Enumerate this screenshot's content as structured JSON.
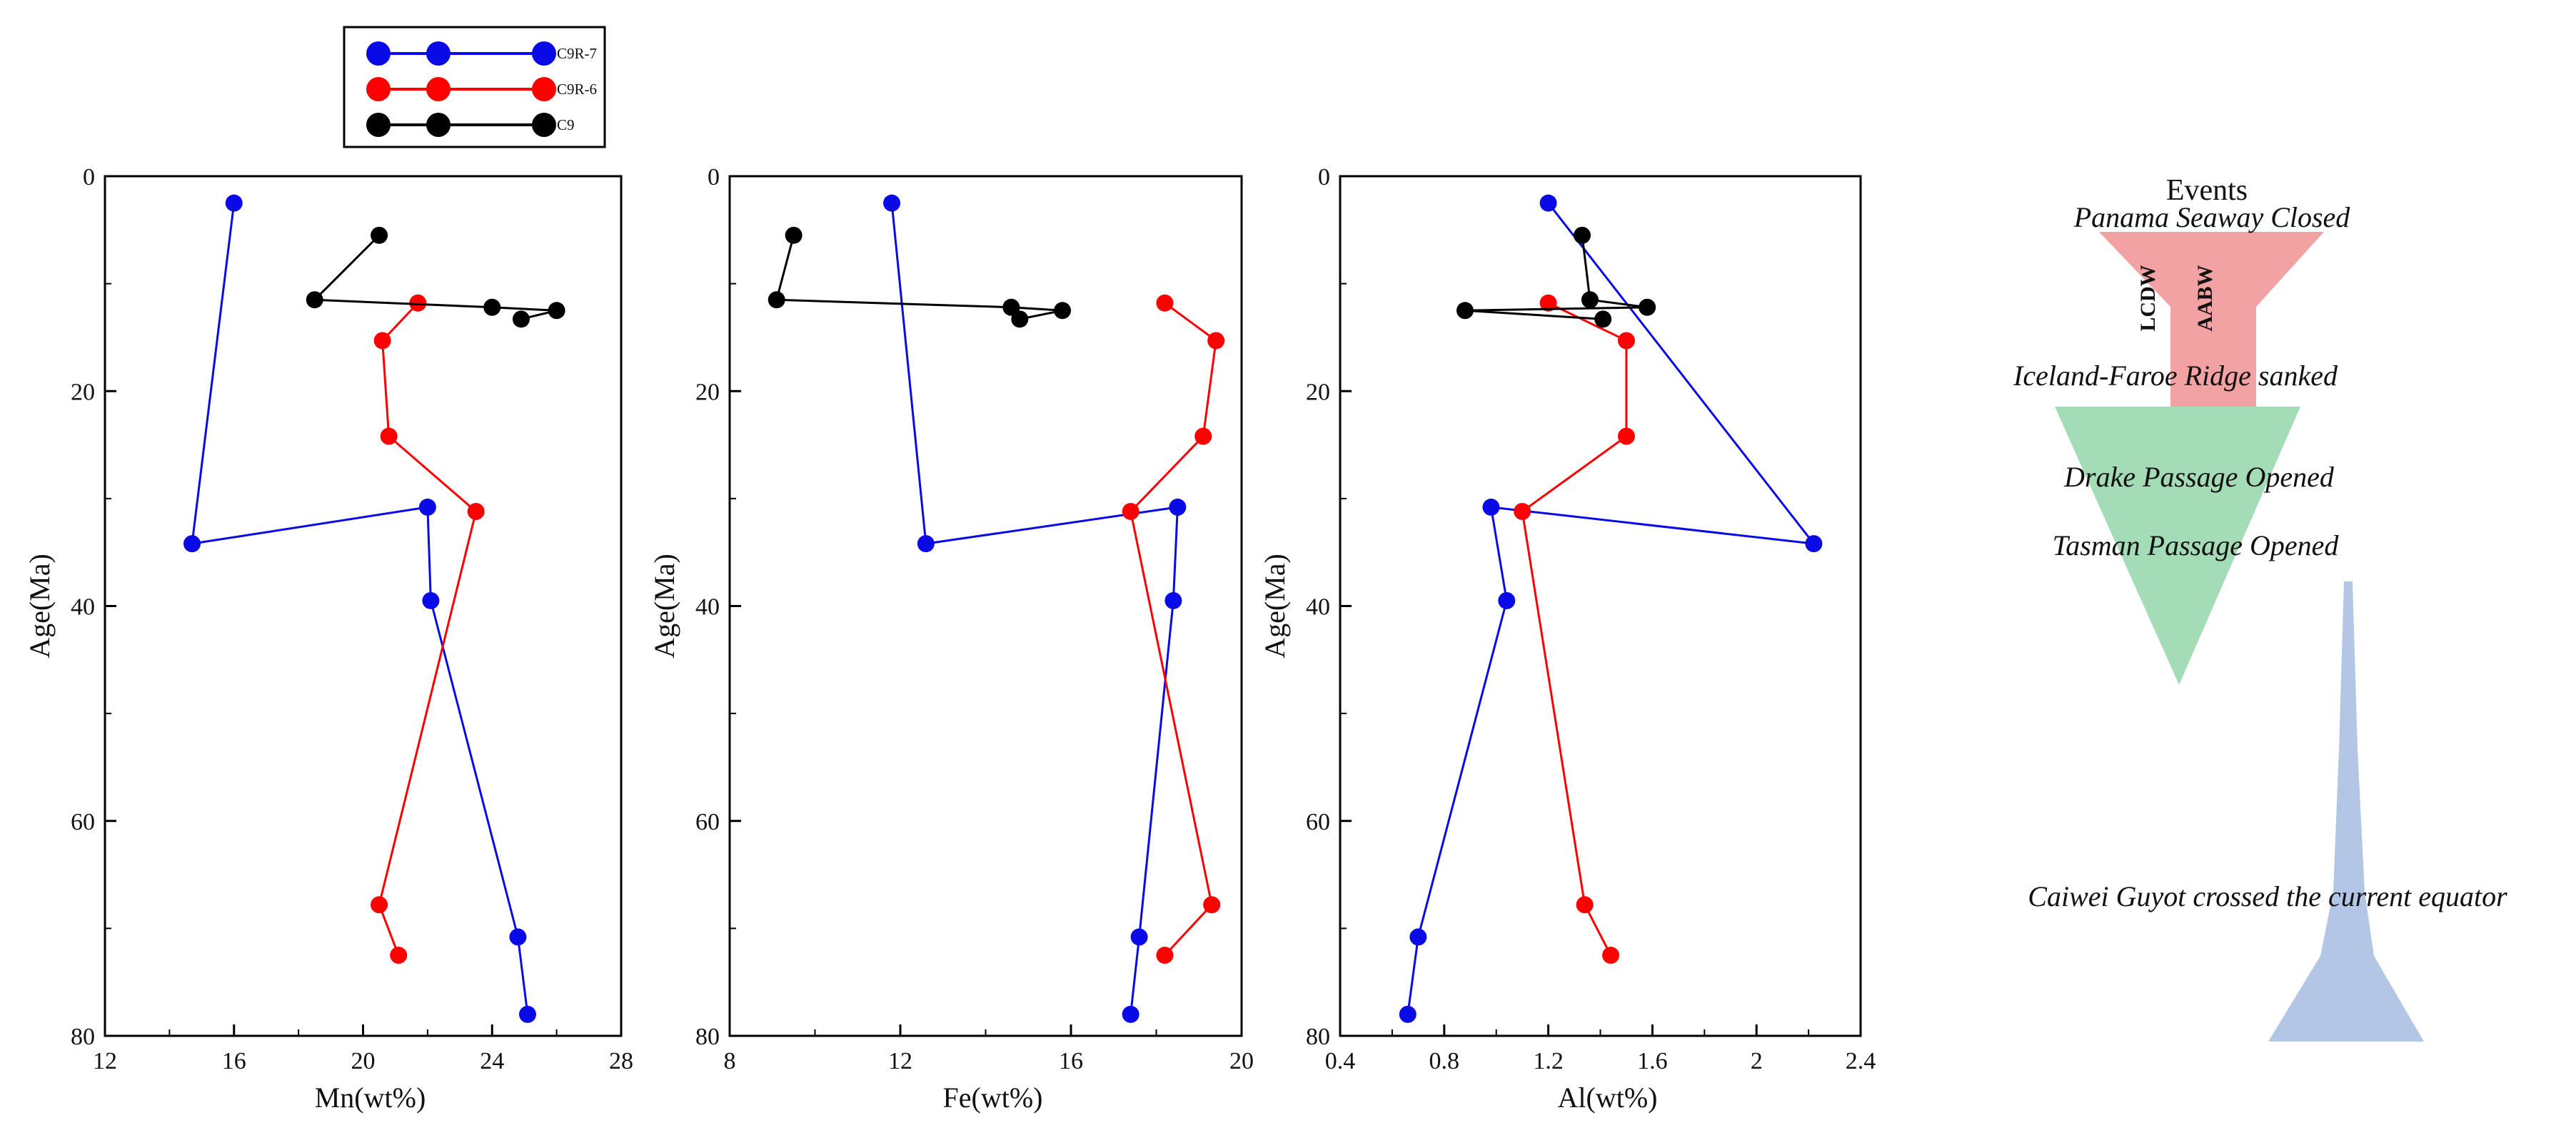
{
  "chart_data": [
    {
      "type": "line",
      "xlabel": "Mn(wt%)",
      "ylabel": "Age(Ma)",
      "xlim": [
        12,
        28
      ],
      "ylim": [
        0,
        80
      ],
      "y_inverted": true,
      "xticks": [
        12,
        16,
        20,
        24,
        28
      ],
      "yticks": [
        0,
        20,
        40,
        60,
        80
      ],
      "series": [
        {
          "name": "C9R-7",
          "color": "#0a0ae6",
          "points": [
            [
              16.0,
              2.5
            ],
            [
              14.7,
              34.2
            ],
            [
              22.0,
              30.8
            ],
            [
              22.1,
              39.5
            ],
            [
              24.8,
              70.8
            ],
            [
              25.1,
              78.0
            ]
          ]
        },
        {
          "name": "C9R-6",
          "color": "#ff0000",
          "points": [
            [
              21.7,
              11.8
            ],
            [
              20.6,
              15.3
            ],
            [
              20.8,
              24.2
            ],
            [
              23.5,
              31.2
            ],
            [
              20.5,
              67.8
            ],
            [
              21.1,
              72.5
            ]
          ]
        },
        {
          "name": "C9",
          "color": "#000000",
          "points": [
            [
              20.5,
              5.5
            ],
            [
              18.5,
              11.5
            ],
            [
              24.0,
              12.2
            ],
            [
              26.0,
              12.5
            ],
            [
              24.9,
              13.3
            ]
          ]
        }
      ]
    },
    {
      "type": "line",
      "xlabel": "Fe(wt%)",
      "ylabel": "Age(Ma)",
      "xlim": [
        8,
        20
      ],
      "ylim": [
        0,
        80
      ],
      "y_inverted": true,
      "xticks": [
        8,
        12,
        16,
        20
      ],
      "yticks": [
        0,
        20,
        40,
        60,
        80
      ],
      "series": [
        {
          "name": "C9R-7",
          "color": "#0a0ae6",
          "points": [
            [
              11.8,
              2.5
            ],
            [
              12.6,
              34.2
            ],
            [
              18.5,
              30.8
            ],
            [
              18.4,
              39.5
            ],
            [
              17.6,
              70.8
            ],
            [
              17.4,
              78.0
            ]
          ]
        },
        {
          "name": "C9R-6",
          "color": "#ff0000",
          "points": [
            [
              18.2,
              11.8
            ],
            [
              19.4,
              15.3
            ],
            [
              19.1,
              24.2
            ],
            [
              17.4,
              31.2
            ],
            [
              19.3,
              67.8
            ],
            [
              18.2,
              72.5
            ]
          ]
        },
        {
          "name": "C9",
          "color": "#000000",
          "points": [
            [
              9.5,
              5.5
            ],
            [
              9.1,
              11.5
            ],
            [
              14.6,
              12.2
            ],
            [
              15.8,
              12.5
            ],
            [
              14.8,
              13.3
            ]
          ]
        }
      ]
    },
    {
      "type": "line",
      "xlabel": "Al(wt%)",
      "ylabel": "Age(Ma)",
      "xlim": [
        0.4,
        2.4
      ],
      "ylim": [
        0,
        80
      ],
      "y_inverted": true,
      "xticks": [
        0.4,
        0.8,
        1.2,
        1.6,
        2,
        2.4
      ],
      "yticks": [
        0,
        20,
        40,
        60,
        80
      ],
      "series": [
        {
          "name": "C9R-7",
          "color": "#0a0ae6",
          "points": [
            [
              1.2,
              2.5
            ],
            [
              2.22,
              34.2
            ],
            [
              0.98,
              30.8
            ],
            [
              1.04,
              39.5
            ],
            [
              0.7,
              70.8
            ],
            [
              0.66,
              78.0
            ]
          ]
        },
        {
          "name": "C9R-6",
          "color": "#ff0000",
          "points": [
            [
              1.2,
              11.8
            ],
            [
              1.5,
              15.3
            ],
            [
              1.5,
              24.2
            ],
            [
              1.1,
              31.2
            ],
            [
              1.34,
              67.8
            ],
            [
              1.44,
              72.5
            ]
          ]
        },
        {
          "name": "C9",
          "color": "#000000",
          "points": [
            [
              1.33,
              5.5
            ],
            [
              1.36,
              11.5
            ],
            [
              1.58,
              12.2
            ],
            [
              0.88,
              12.5
            ],
            [
              1.41,
              13.3
            ]
          ]
        }
      ]
    }
  ],
  "legend": {
    "entries": [
      {
        "name": "C9R-7",
        "color": "#0a0ae6"
      },
      {
        "name": "C9R-6",
        "color": "#ff0000"
      },
      {
        "name": "C9",
        "color": "#000000"
      }
    ]
  },
  "events_panel": {
    "title": "Events",
    "events": [
      "Panama Seaway Closed",
      "Iceland-Faroe Ridge sanked",
      "Drake Passage Opened",
      "Tasman Passage Opened",
      "Caiwei Guyot crossed the current equator"
    ],
    "currents": [
      "LCDW",
      "AABW"
    ],
    "colors": {
      "red": "#f2a2a2",
      "green": "#a4dcb8",
      "blue": "#b4c6e6"
    }
  }
}
